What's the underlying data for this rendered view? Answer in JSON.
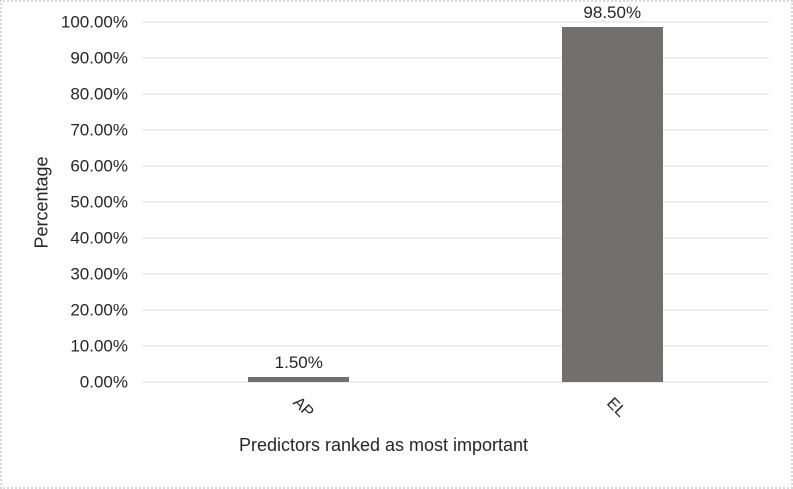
{
  "chart_data": {
    "type": "bar",
    "categories": [
      "AP",
      "EL"
    ],
    "values": [
      1.5,
      98.5
    ],
    "data_labels": [
      "1.50%",
      "98.50%"
    ],
    "title": "",
    "xlabel": "Predictors ranked as most important",
    "ylabel": "Percentage",
    "ylim": [
      0,
      100
    ],
    "ytick_step": 10,
    "ytick_labels": [
      "0.00%",
      "10.00%",
      "20.00%",
      "30.00%",
      "40.00%",
      "50.00%",
      "60.00%",
      "70.00%",
      "80.00%",
      "90.00%",
      "100.00%"
    ],
    "grid": true,
    "legend": "none",
    "category_label_rotation_deg": 45,
    "colors": {
      "bar": "#726F6F",
      "gridline": "#D9D9D9",
      "axis_line": "#D9D9D9",
      "text": "#262626",
      "background": "#FFFFFF",
      "chart_border": "#D8D8D8"
    }
  }
}
